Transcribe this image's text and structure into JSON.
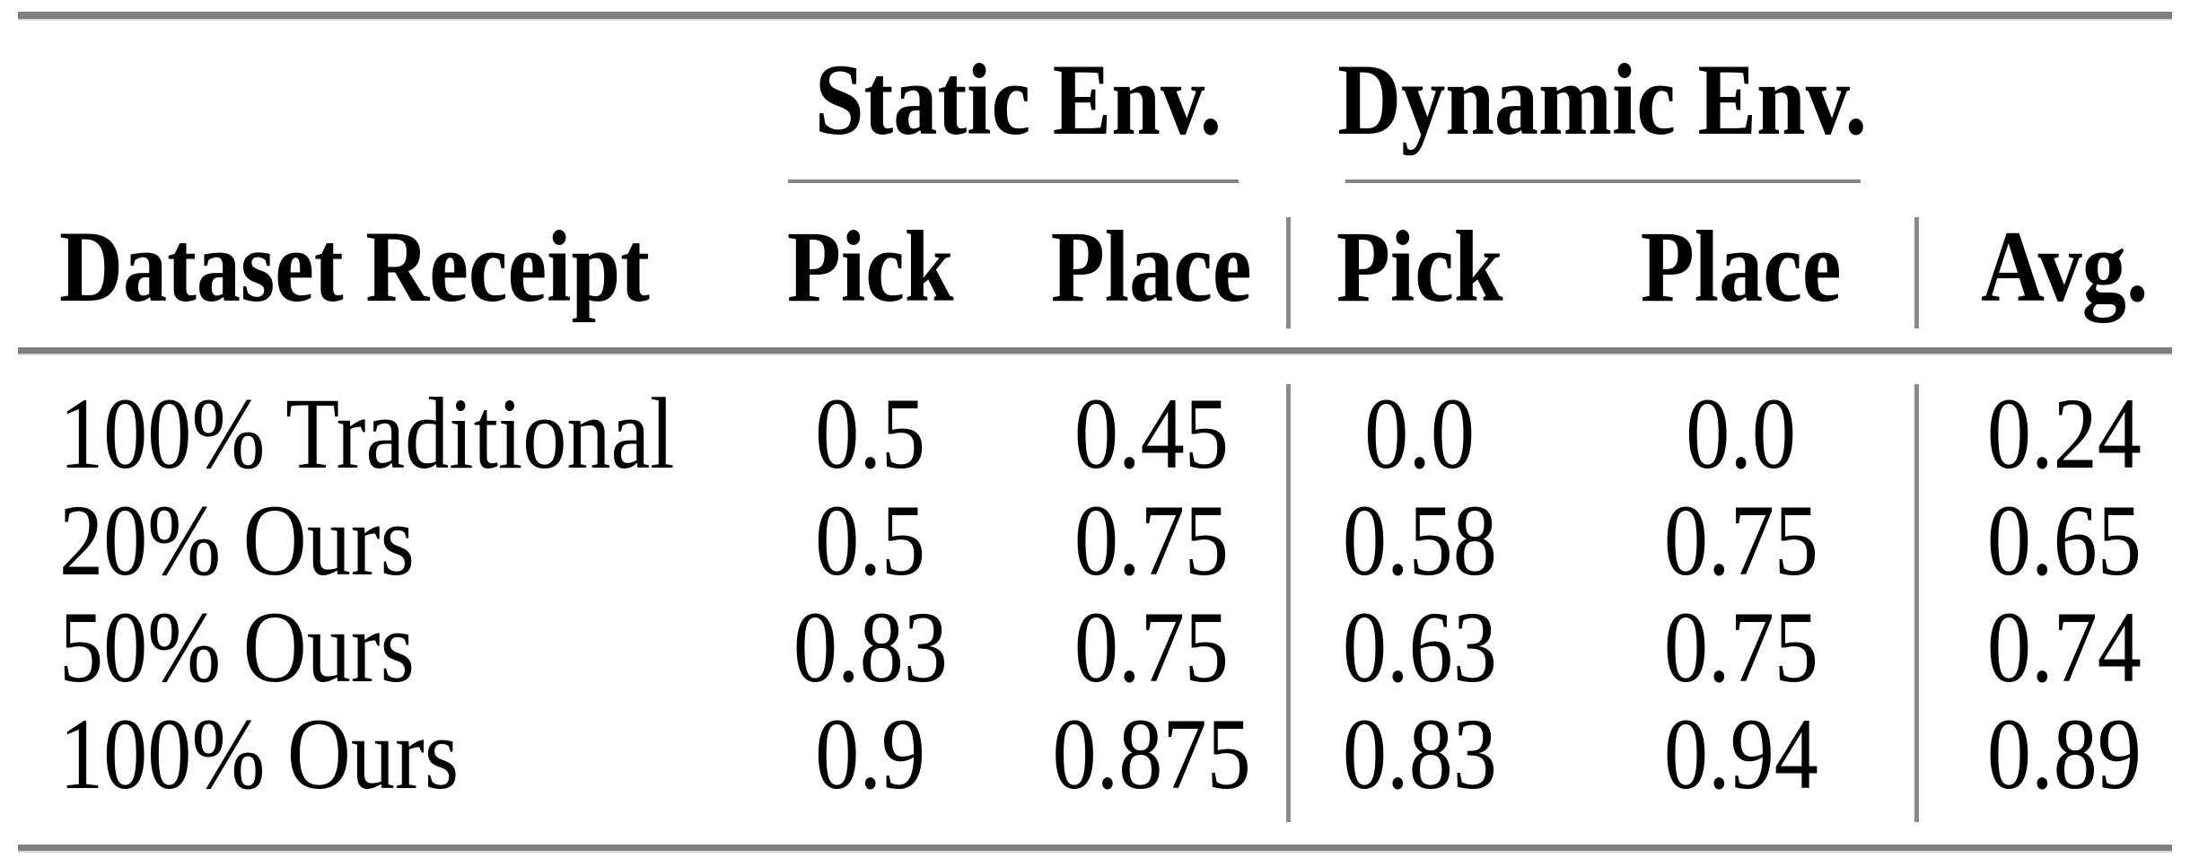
{
  "columns": {
    "row_header": "Dataset Receipt",
    "groups": [
      {
        "label": "Static Env.",
        "children": [
          "Pick",
          "Place"
        ]
      },
      {
        "label": "Dynamic Env.",
        "children": [
          "Pick",
          "Place"
        ]
      }
    ],
    "avg": "Avg."
  },
  "rows": [
    {
      "label": "100% Traditional",
      "cells": [
        "0.5",
        "0.45",
        "0.0",
        "0.0",
        "0.24"
      ]
    },
    {
      "label": "20% Ours",
      "cells": [
        "0.5",
        "0.75",
        "0.58",
        "0.75",
        "0.65"
      ]
    },
    {
      "label": "50% Ours",
      "cells": [
        "0.83",
        "0.75",
        "0.63",
        "0.75",
        "0.74"
      ]
    },
    {
      "label": "100% Ours",
      "cells": [
        "0.9",
        "0.875",
        "0.83",
        "0.94",
        "0.89"
      ]
    }
  ],
  "colors": {
    "rule_gray": "#7f7f7f",
    "separator_gray": "#8a8a8a",
    "text": "#000000",
    "background": "#ffffff"
  },
  "chart_data": {
    "type": "table",
    "columns": [
      "Dataset Receipt",
      "Static Env. Pick",
      "Static Env. Place",
      "Dynamic Env. Pick",
      "Dynamic Env. Place",
      "Avg."
    ],
    "rows": [
      [
        "100% Traditional",
        0.5,
        0.45,
        0.0,
        0.0,
        0.24
      ],
      [
        "20% Ours",
        0.5,
        0.75,
        0.58,
        0.75,
        0.65
      ],
      [
        "50% Ours",
        0.83,
        0.75,
        0.63,
        0.75,
        0.74
      ],
      [
        "100% Ours",
        0.9,
        0.875,
        0.83,
        0.94,
        0.89
      ]
    ]
  }
}
